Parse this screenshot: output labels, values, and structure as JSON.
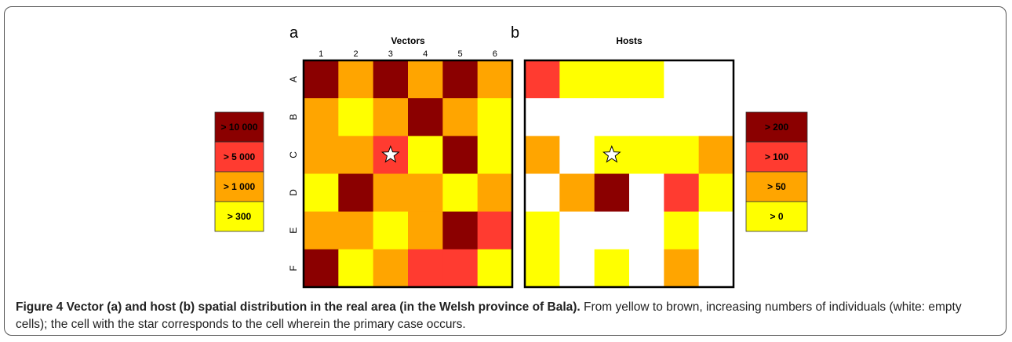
{
  "panels": [
    {
      "letter": "a",
      "title": "Vectors",
      "columns": [
        "1",
        "2",
        "3",
        "4",
        "5",
        "6"
      ],
      "rows": [
        "A",
        "B",
        "C",
        "D",
        "E",
        "F"
      ],
      "cells": [
        [
          "#8b0000",
          "#ffa500",
          "#8b0000",
          "#ffa500",
          "#8b0000",
          "#ffa500"
        ],
        [
          "#ffa500",
          "#ffff00",
          "#ffa500",
          "#8b0000",
          "#ffa500",
          "#ffff00"
        ],
        [
          "#ffa500",
          "#ffa500",
          "#ff3b30",
          "#ffff00",
          "#8b0000",
          "#ffff00"
        ],
        [
          "#ffff00",
          "#8b0000",
          "#ffa500",
          "#ffa500",
          "#ffff00",
          "#ffa500"
        ],
        [
          "#ffa500",
          "#ffa500",
          "#ffff00",
          "#ffa500",
          "#8b0000",
          "#ff3b30"
        ],
        [
          "#8b0000",
          "#ffff00",
          "#ffa500",
          "#ff3b30",
          "#ff3b30",
          "#ffff00"
        ]
      ],
      "star": {
        "row": "C",
        "column": "3"
      },
      "legend": [
        {
          "label": "> 10 000",
          "color": "#8b0000"
        },
        {
          "label": "> 5 000",
          "color": "#ff3b30"
        },
        {
          "label": "> 1 000",
          "color": "#ffa500"
        },
        {
          "label": "> 300",
          "color": "#ffff00"
        }
      ]
    },
    {
      "letter": "b",
      "title": "Hosts",
      "cells": [
        [
          "#ff3b30",
          "#ffff00",
          "#ffff00",
          "#ffff00",
          "#ffffff",
          "#ffffff"
        ],
        [
          "#ffffff",
          "#ffffff",
          "#ffffff",
          "#ffffff",
          "#ffffff",
          "#ffffff"
        ],
        [
          "#ffa500",
          "#ffffff",
          "#ffff00",
          "#ffff00",
          "#ffff00",
          "#ffa500"
        ],
        [
          "#ffffff",
          "#ffa500",
          "#8b0000",
          "#ffffff",
          "#ff3b30",
          "#ffff00"
        ],
        [
          "#ffff00",
          "#ffffff",
          "#ffffff",
          "#ffffff",
          "#ffff00",
          "#ffffff"
        ],
        [
          "#ffff00",
          "#ffffff",
          "#ffff00",
          "#ffffff",
          "#ffa500",
          "#ffffff"
        ]
      ],
      "star": {
        "row": "C",
        "column": "3"
      },
      "legend": [
        {
          "label": "> 200",
          "color": "#8b0000"
        },
        {
          "label": "> 100",
          "color": "#ff3b30"
        },
        {
          "label": "> 50",
          "color": "#ffa500"
        },
        {
          "label": "> 0",
          "color": "#ffff00"
        }
      ]
    }
  ],
  "caption": {
    "bold": "Figure 4 Vector (a) and host (b) spatial distribution in the real area (in the Welsh province of Bala).",
    "text": "From yellow to brown, increasing numbers of individuals (white: empty cells); the cell with the star corresponds to the cell wherein the primary case occurs."
  }
}
